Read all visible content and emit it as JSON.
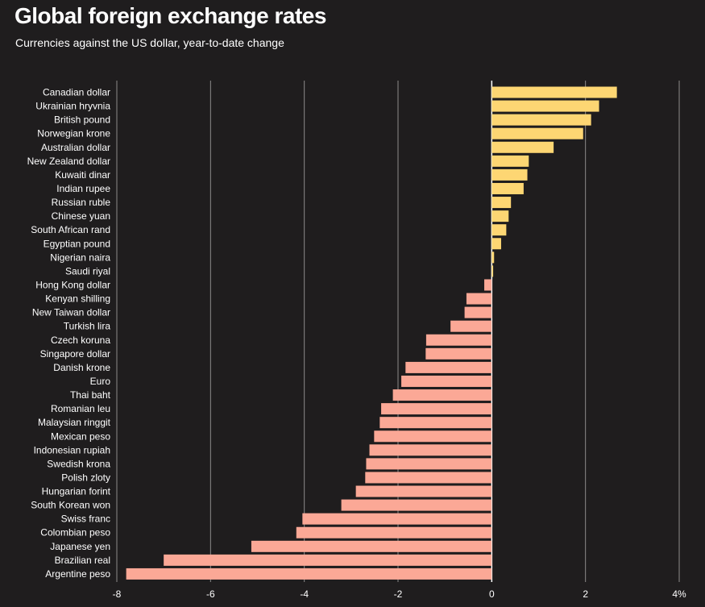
{
  "header": {
    "title": "Global foreign exchange rates",
    "subtitle": "Currencies against the US dollar, year-to-date change"
  },
  "colors": {
    "background": "#1f1d1e",
    "positive": "#fdd673",
    "negative": "#fba896",
    "gridline": "#8c8b8b",
    "zero_line": "#ffffff",
    "text": "#ffffff"
  },
  "chart_data": {
    "type": "bar",
    "orientation": "horizontal",
    "title": "Global foreign exchange rates",
    "subtitle": "Currencies against the US dollar, year-to-date change",
    "xlabel": "",
    "ylabel": "",
    "xlim": [
      -8,
      4
    ],
    "grid": true,
    "categories": [
      "Canadian dollar",
      "Ukrainian hryvnia",
      "British pound",
      "Norwegian krone",
      "Australian dollar",
      "New Zealand dollar",
      "Kuwaiti dinar",
      "Indian rupee",
      "Russian ruble",
      "Chinese yuan",
      "South African rand",
      "Egyptian pound",
      "Nigerian naira",
      "Saudi riyal",
      "Hong Kong dollar",
      "Kenyan shilling",
      "New Taiwan dollar",
      "Turkish lira",
      "Czech koruna",
      "Singapore dollar",
      "Danish krone",
      "Euro",
      "Thai baht",
      "Romanian leu",
      "Malaysian ringgit",
      "Mexican peso",
      "Indonesian rupiah",
      "Swedish krona",
      "Polish zloty",
      "Hungarian forint",
      "South Korean won",
      "Swiss franc",
      "Colombian peso",
      "Japanese yen",
      "Brazilian real",
      "Argentine peso"
    ],
    "values": [
      2.67,
      2.29,
      2.12,
      1.95,
      1.32,
      0.79,
      0.76,
      0.68,
      0.41,
      0.36,
      0.31,
      0.2,
      0.05,
      0.03,
      -0.16,
      -0.54,
      -0.58,
      -0.88,
      -1.4,
      -1.41,
      -1.84,
      -1.93,
      -2.11,
      -2.36,
      -2.39,
      -2.51,
      -2.61,
      -2.68,
      -2.7,
      -2.9,
      -3.21,
      -4.04,
      -4.17,
      -5.13,
      -7.0,
      -7.8
    ],
    "x_ticks": [
      -8,
      -6,
      -4,
      -2,
      0,
      2,
      4
    ],
    "x_tick_labels": [
      "-8",
      "-6",
      "-4",
      "-2",
      "0",
      "2",
      "4%"
    ]
  }
}
